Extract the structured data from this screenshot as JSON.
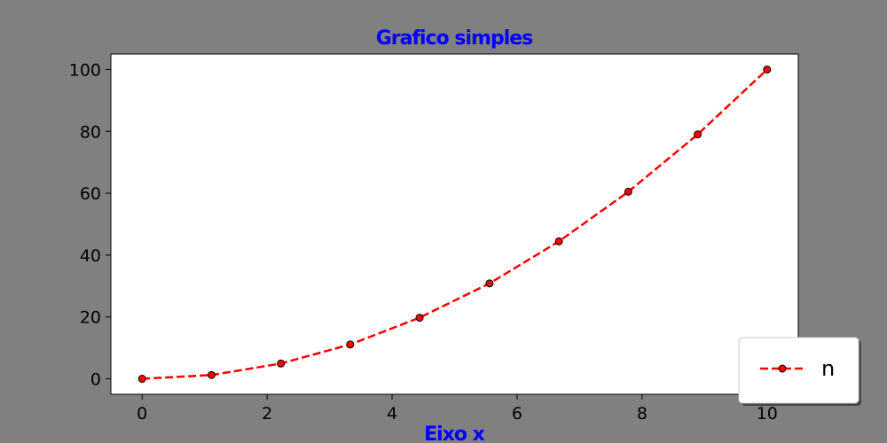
{
  "chart_data": {
    "type": "line",
    "title": "Grafico simples",
    "xlabel": "Eixo x",
    "ylabel": "",
    "xlim": [
      -0.5,
      10.5
    ],
    "ylim": [
      -5,
      105
    ],
    "xticks": [
      0,
      2,
      4,
      6,
      8,
      10
    ],
    "yticks": [
      0,
      20,
      40,
      60,
      80,
      100
    ],
    "xtick_labels": [
      "0",
      "2",
      "4",
      "6",
      "8",
      "10"
    ],
    "ytick_labels": [
      "0",
      "20",
      "40",
      "60",
      "80",
      "100"
    ],
    "grid": false,
    "legend_position": "lower-right",
    "series": [
      {
        "name": "n",
        "x": [
          0,
          1.11,
          2.22,
          3.33,
          4.44,
          5.56,
          6.67,
          7.78,
          8.89,
          10
        ],
        "y": [
          0,
          1.23,
          4.94,
          11.11,
          19.75,
          30.86,
          44.44,
          60.49,
          79.01,
          100
        ],
        "line_color": "#ff0000",
        "marker_face": "#ff0000",
        "marker_edge": "#000000",
        "line_style": "dashed"
      }
    ],
    "colors": {
      "background": "#808080",
      "plot_area": "#ffffff",
      "title": "#0000ff",
      "xlabel": "#0000ff"
    }
  }
}
